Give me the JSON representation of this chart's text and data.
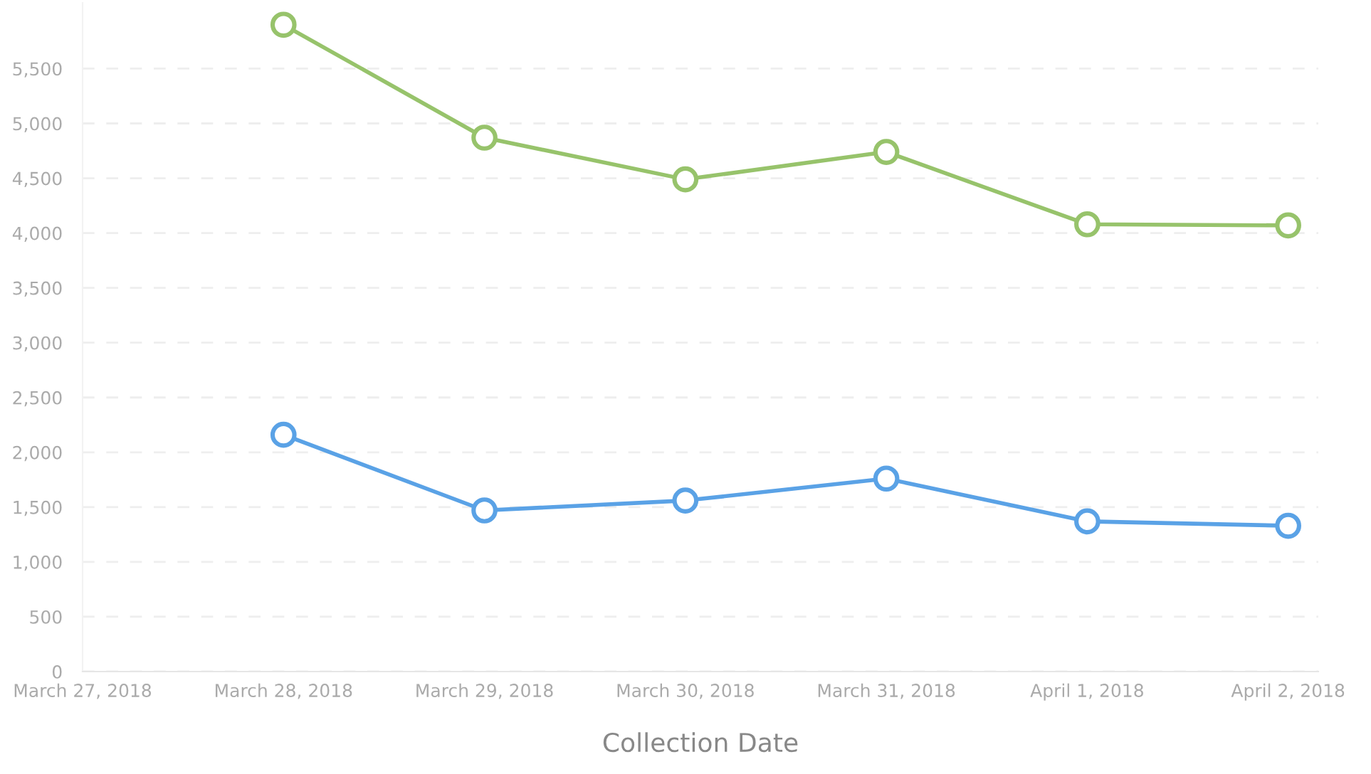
{
  "chart_data": {
    "type": "line",
    "xlabel": "Collection Date",
    "categories": [
      "March 27, 2018",
      "March 28, 2018",
      "March 29, 2018",
      "March 30, 2018",
      "March 31, 2018",
      "April 1, 2018",
      "April 2, 2018"
    ],
    "series": [
      {
        "color": "#97c36b",
        "values": [
          null,
          5900,
          4870,
          4490,
          4740,
          4080,
          4070
        ]
      },
      {
        "color": "#5aa2e6",
        "values": [
          null,
          2160,
          1470,
          1560,
          1760,
          1370,
          1330
        ]
      }
    ],
    "ylim": [
      0,
      6100
    ],
    "yticks": [
      0,
      500,
      {
        "value": 1000,
        "label": "1,000"
      },
      {
        "value": 1500,
        "label": "1,500"
      },
      {
        "value": 2000,
        "label": "2,000"
      },
      {
        "value": 2500,
        "label": "2,500"
      },
      {
        "value": 3000,
        "label": "3,000"
      },
      {
        "value": 3500,
        "label": "3,500"
      },
      {
        "value": 4000,
        "label": "4,000"
      },
      {
        "value": 4500,
        "label": "4,500"
      },
      {
        "value": 5000,
        "label": "5,000"
      },
      {
        "value": 5500,
        "label": "5,500"
      }
    ],
    "grid": "y",
    "marker": "circle",
    "line_style": "solid"
  }
}
